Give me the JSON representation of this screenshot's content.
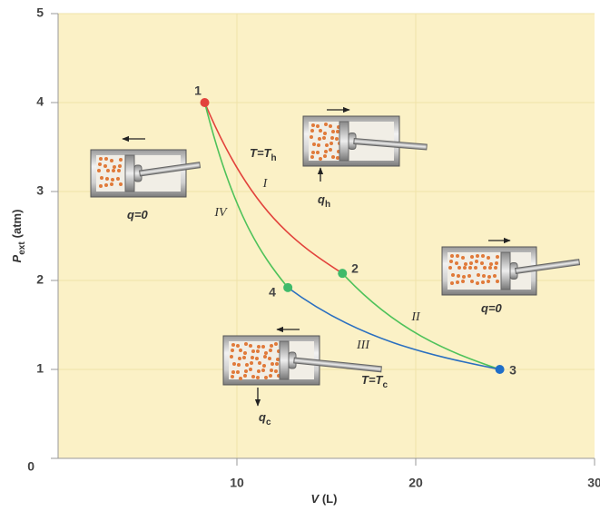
{
  "chart_data": {
    "type": "line",
    "x_label": {
      "symbol": "V",
      "unit": "(L)"
    },
    "y_label": {
      "symbol": "P",
      "sub": "ext",
      "unit": "(atm)"
    },
    "xlim": [
      0,
      30
    ],
    "xticks": [
      10,
      20,
      30
    ],
    "ylim": [
      0,
      5
    ],
    "yticks": [
      0,
      1,
      2,
      3,
      4,
      5
    ],
    "grid": true,
    "background": "#fbf1c6",
    "series": [
      {
        "name": "I",
        "color": "#e2433c",
        "x": [
          8.2,
          15.9
        ],
        "values": [
          4.0,
          2.08
        ]
      },
      {
        "name": "II",
        "color": "#4fc25a",
        "x": [
          15.9,
          24.7
        ],
        "values": [
          2.08,
          1.0
        ]
      },
      {
        "name": "III",
        "color": "#2a6fc0",
        "x": [
          24.7,
          12.85
        ],
        "values": [
          1.0,
          1.92
        ]
      },
      {
        "name": "IV",
        "color": "#4fc25a",
        "x": [
          12.85,
          8.2
        ],
        "values": [
          1.92,
          4.0
        ]
      }
    ],
    "points": {
      "labels": [
        "1",
        "2",
        "3",
        "4"
      ],
      "x": [
        8.2,
        15.9,
        24.7,
        12.85
      ],
      "values": [
        4.0,
        2.08,
        1.0,
        1.92
      ],
      "colors": [
        "#e2433c",
        "#3fba6a",
        "#1f6ec8",
        "#3fba6a"
      ]
    },
    "annotations": [
      {
        "text": "T=T",
        "sub": "h"
      },
      {
        "text": "q=0"
      },
      {
        "text": "q=0"
      },
      {
        "text": "q",
        "sub": "h"
      },
      {
        "text": "q",
        "sub": "c"
      },
      {
        "text": "T=T",
        "sub": "c"
      }
    ]
  }
}
